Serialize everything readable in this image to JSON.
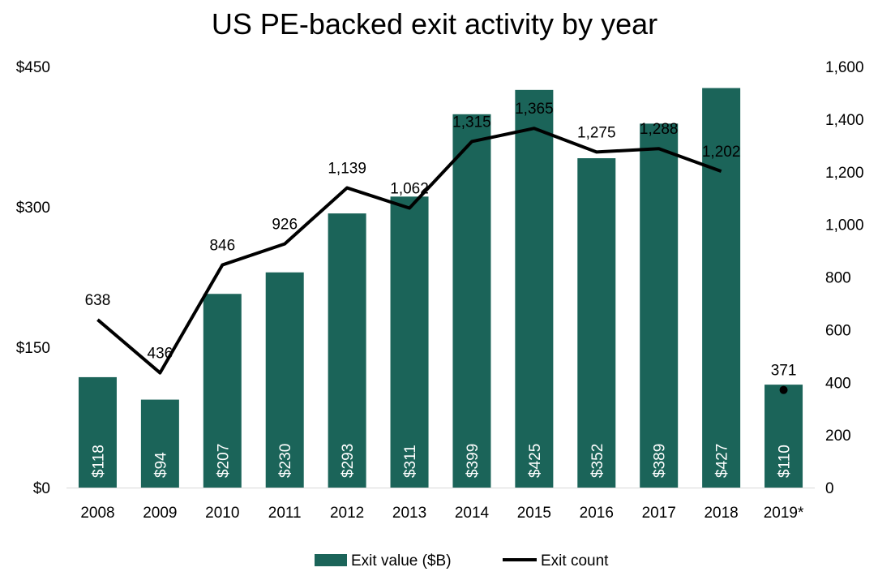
{
  "chart_data": {
    "type": "bar",
    "title": "US PE-backed exit activity by year",
    "categories": [
      "2008",
      "2009",
      "2010",
      "2011",
      "2012",
      "2013",
      "2014",
      "2015",
      "2016",
      "2017",
      "2018",
      "2019*"
    ],
    "series": [
      {
        "name": "Exit value ($B)",
        "type": "bar",
        "axis": "left",
        "values": [
          118,
          94,
          207,
          230,
          293,
          311,
          399,
          425,
          352,
          389,
          427,
          110
        ],
        "labels": [
          "$118",
          "$94",
          "$207",
          "$230",
          "$293",
          "$311",
          "$399",
          "$425",
          "$352",
          "$389",
          "$427",
          "$110"
        ],
        "color": "#1b6459"
      },
      {
        "name": "Exit count",
        "type": "line",
        "axis": "right",
        "values": [
          638,
          436,
          846,
          926,
          1139,
          1062,
          1315,
          1365,
          1275,
          1288,
          1202,
          371
        ],
        "labels": [
          "638",
          "436",
          "846",
          "926",
          "1,139",
          "1,062",
          "1,315",
          "1,365",
          "1,275",
          "1,288",
          "1,202",
          "371"
        ],
        "connected_through_index": 10,
        "color": "#000000"
      }
    ],
    "y_left": {
      "ylim": [
        0,
        450
      ],
      "ticks": [
        0,
        150,
        300,
        450
      ],
      "tick_labels": [
        "$0",
        "$150",
        "$300",
        "$450"
      ]
    },
    "y_right": {
      "ylim": [
        0,
        1600
      ],
      "ticks": [
        0,
        200,
        400,
        600,
        800,
        1000,
        1200,
        1400,
        1600
      ],
      "tick_labels": [
        "0",
        "200",
        "400",
        "600",
        "800",
        "1,000",
        "1,200",
        "1,400",
        "1,600"
      ]
    },
    "grid": false,
    "legend": {
      "position": "bottom-center",
      "entries": [
        "Exit value ($B)",
        "Exit count"
      ]
    }
  }
}
